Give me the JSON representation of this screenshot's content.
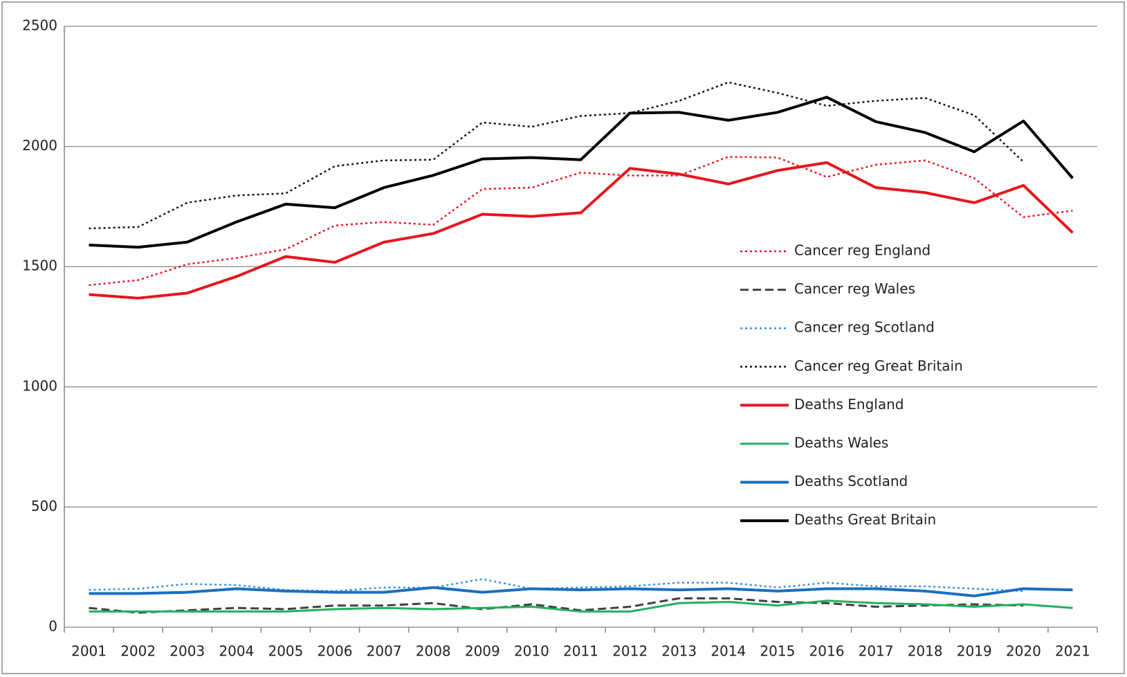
{
  "chart_data": {
    "type": "line",
    "categories": [
      "2001",
      "2002",
      "2003",
      "2004",
      "2005",
      "2006",
      "2007",
      "2008",
      "2009",
      "2010",
      "2011",
      "2012",
      "2013",
      "2014",
      "2015",
      "2016",
      "2017",
      "2018",
      "2019",
      "2020",
      "2021"
    ],
    "ylim": [
      0,
      2500
    ],
    "yticks": [
      0,
      500,
      1000,
      1500,
      2000,
      2500
    ],
    "grid": true,
    "series": [
      {
        "name": "Cancer reg England",
        "color": "#e8141b",
        "style": "dotted",
        "values": [
          1423,
          1444,
          1510,
          1536,
          1572,
          1671,
          1686,
          1674,
          1823,
          1829,
          1891,
          1879,
          1879,
          1957,
          1954,
          1873,
          1924,
          1942,
          1868,
          1706,
          1733
        ]
      },
      {
        "name": "Cancer reg Wales",
        "color": "#404040",
        "style": "dashed",
        "values": [
          80,
          60,
          70,
          80,
          75,
          90,
          90,
          100,
          75,
          95,
          70,
          85,
          120,
          120,
          105,
          100,
          85,
          90,
          95,
          90,
          null
        ]
      },
      {
        "name": "Cancer reg Scotland",
        "color": "#3a8fd8",
        "style": "dotted",
        "values": [
          155,
          160,
          180,
          175,
          155,
          150,
          165,
          165,
          200,
          160,
          165,
          170,
          185,
          185,
          165,
          185,
          170,
          170,
          160,
          150,
          null
        ]
      },
      {
        "name": "Cancer reg Great Britain",
        "color": "#111111",
        "style": "dotted",
        "values": [
          1659,
          1665,
          1766,
          1796,
          1805,
          1918,
          1942,
          1945,
          2100,
          2082,
          2127,
          2139,
          2190,
          2267,
          2223,
          2169,
          2190,
          2202,
          2130,
          1936,
          null
        ]
      },
      {
        "name": "Deaths England",
        "color": "#e8141b",
        "style": "solid",
        "values": [
          1384,
          1369,
          1390,
          1459,
          1542,
          1518,
          1602,
          1638,
          1718,
          1709,
          1724,
          1909,
          1885,
          1844,
          1900,
          1933,
          1829,
          1808,
          1766,
          1838,
          1641
        ]
      },
      {
        "name": "Deaths Wales",
        "color": "#22b05a",
        "style": "solid",
        "values": [
          65,
          65,
          65,
          65,
          65,
          75,
          80,
          75,
          80,
          85,
          65,
          65,
          100,
          105,
          90,
          110,
          100,
          95,
          85,
          95,
          80
        ]
      },
      {
        "name": "Deaths Scotland",
        "color": "#1a6fc0",
        "style": "solid",
        "values": [
          140,
          140,
          145,
          160,
          150,
          145,
          145,
          165,
          145,
          160,
          155,
          160,
          155,
          160,
          150,
          160,
          160,
          150,
          130,
          160,
          155
        ]
      },
      {
        "name": "Deaths Great Britain",
        "color": "#000000",
        "style": "solid",
        "values": [
          1590,
          1581,
          1602,
          1686,
          1760,
          1745,
          1829,
          1880,
          1948,
          1954,
          1945,
          2139,
          2142,
          2109,
          2142,
          2205,
          2103,
          2058,
          1978,
          2106,
          1868
        ]
      }
    ]
  }
}
